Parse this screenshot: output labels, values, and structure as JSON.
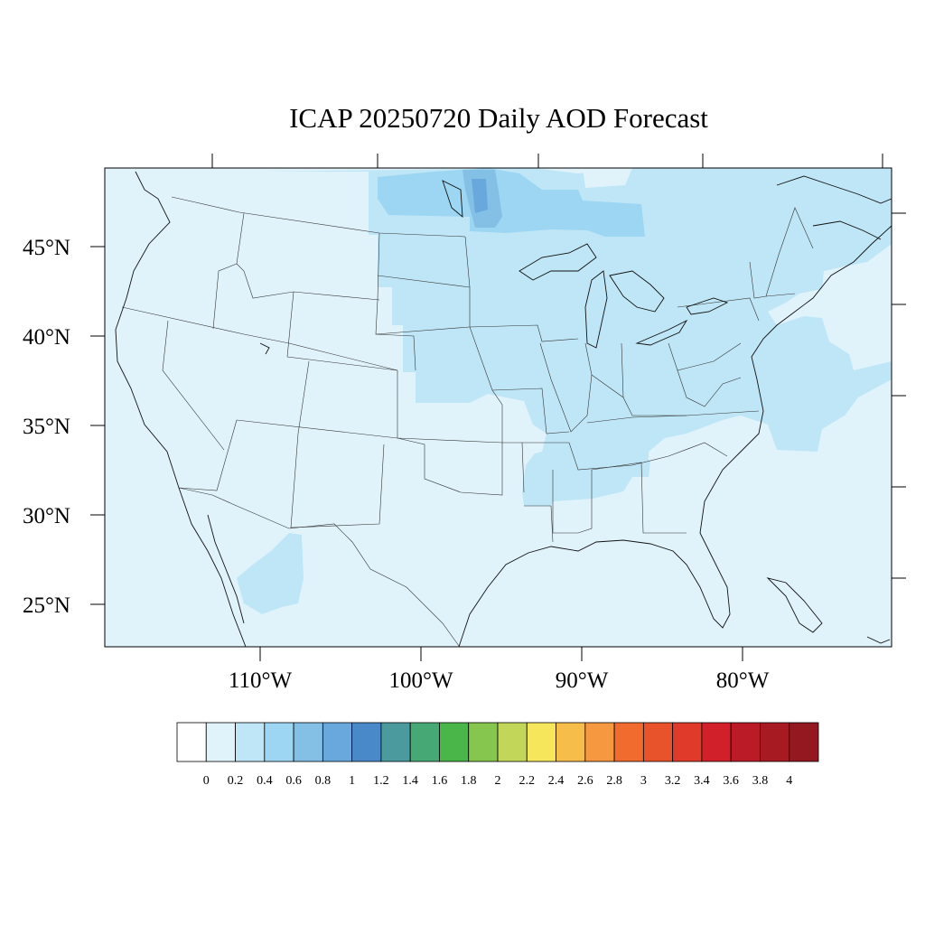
{
  "title": "ICAP 20250720 Daily AOD Forecast",
  "map": {
    "lat_labels": [
      "45°N",
      "40°N",
      "35°N",
      "30°N",
      "25°N"
    ],
    "lon_labels": [
      "110°W",
      "100°W",
      "90°W",
      "80°W"
    ],
    "background_color": "#e0f3fb"
  },
  "colorbar": {
    "colors": [
      "#ffffff",
      "#e0f3fb",
      "#bfe6f7",
      "#9dd6f2",
      "#84bfe6",
      "#68a8dc",
      "#4a89c9",
      "#4a9a9e",
      "#46a874",
      "#4ab64a",
      "#86c54e",
      "#c2d65a",
      "#f6e65c",
      "#f6bd4b",
      "#f5983f",
      "#f26b2e",
      "#e9532c",
      "#e03a2a",
      "#d2202a",
      "#bb1b26",
      "#a81a22",
      "#931820"
    ],
    "labels": [
      "0",
      "0.2",
      "0.4",
      "0.6",
      "0.8",
      "1",
      "1.2",
      "1.4",
      "1.6",
      "1.8",
      "2",
      "2.2",
      "2.4",
      "2.6",
      "2.8",
      "3",
      "3.2",
      "3.4",
      "3.6",
      "3.8",
      "4"
    ]
  }
}
